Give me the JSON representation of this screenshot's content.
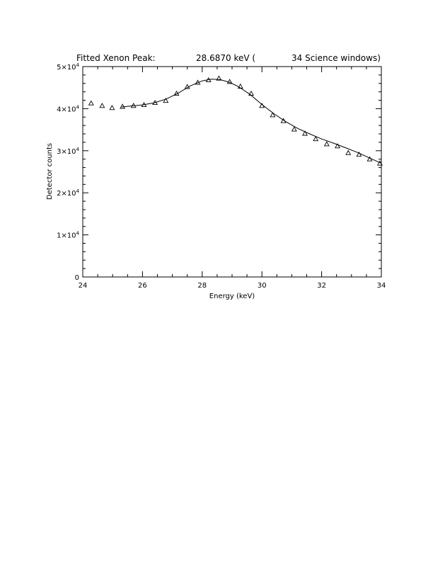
{
  "chart_data": {
    "type": "scatter",
    "title": {
      "prefix": "Fitted Xenon Peak:",
      "energy": "28.6870 keV (",
      "windows": "34 Science windows)"
    },
    "xlabel": "Energy (keV)",
    "ylabel": "Detector counts",
    "xlim": [
      24,
      34
    ],
    "ylim": [
      0,
      50000
    ],
    "x_ticks": [
      {
        "value": 24,
        "label": "24"
      },
      {
        "value": 26,
        "label": "26"
      },
      {
        "value": 28,
        "label": "28"
      },
      {
        "value": 30,
        "label": "30"
      },
      {
        "value": 32,
        "label": "32"
      },
      {
        "value": 34,
        "label": "34"
      }
    ],
    "y_ticks": [
      {
        "value": 0,
        "label": "0"
      },
      {
        "value": 10000,
        "mant": "1",
        "times": "×10",
        "exp": "4"
      },
      {
        "value": 20000,
        "mant": "2",
        "times": "×10",
        "exp": "4"
      },
      {
        "value": 30000,
        "mant": "3",
        "times": "×10",
        "exp": "4"
      },
      {
        "value": 40000,
        "mant": "4",
        "times": "×10",
        "exp": "4"
      },
      {
        "value": 50000,
        "mant": "5",
        "times": "×10",
        "exp": "4"
      }
    ],
    "grid": false,
    "series": [
      {
        "marker": "triangle",
        "x": [
          24.28,
          24.65,
          24.98,
          25.33,
          25.7,
          26.05,
          26.42,
          26.78,
          27.14,
          27.5,
          27.85,
          28.21,
          28.56,
          28.92,
          29.28,
          29.64,
          30.0,
          30.36,
          30.72,
          31.08,
          31.44,
          31.8,
          32.17,
          32.53,
          32.89,
          33.25,
          33.61,
          33.95
        ],
        "y": [
          41300,
          40700,
          40200,
          40500,
          40700,
          40900,
          41400,
          41900,
          43600,
          45200,
          46200,
          46800,
          47200,
          46400,
          45300,
          43600,
          40700,
          38500,
          37100,
          35100,
          34100,
          32800,
          31600,
          31100,
          29500,
          29100,
          28000,
          27000
        ]
      },
      {
        "style": "line",
        "x": [
          25.3,
          25.6,
          26.0,
          26.4,
          26.8,
          27.2,
          27.6,
          28.0,
          28.3,
          28.6,
          28.9,
          29.2,
          29.6,
          30.0,
          30.4,
          30.8,
          31.2,
          31.6,
          32.0,
          32.4,
          32.8,
          33.2,
          33.6,
          34.0
        ],
        "y": [
          40400,
          40600,
          40900,
          41400,
          42300,
          43700,
          45400,
          46600,
          47000,
          46900,
          46300,
          45300,
          43400,
          41000,
          38800,
          36900,
          35300,
          34000,
          32800,
          31800,
          30700,
          29600,
          28300,
          27000
        ]
      }
    ]
  }
}
